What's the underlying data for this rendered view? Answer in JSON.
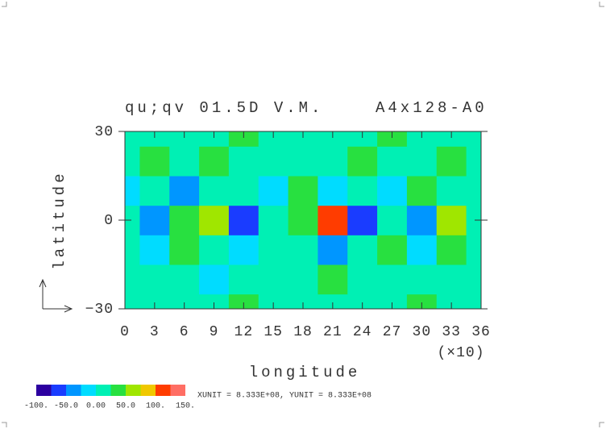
{
  "chart_data": {
    "type": "contour",
    "title": "qu;qv 01.5D V.M.",
    "subtitle": "A4x128-A0",
    "x_label": "longitude",
    "x_unit": "(×10)",
    "y_label": "latitude",
    "unit_note": "XUNIT = 8.333E+08, YUNIT = 8.333E+08",
    "x": [
      0,
      3,
      6,
      9,
      12,
      15,
      18,
      21,
      24,
      27,
      30,
      33,
      36
    ],
    "y": [
      -30,
      -20,
      -10,
      0,
      10,
      20,
      30
    ],
    "z": [
      [
        10,
        20,
        5,
        15,
        30,
        10,
        0,
        20,
        15,
        5,
        25,
        10,
        15
      ],
      [
        5,
        0,
        15,
        -10,
        10,
        20,
        5,
        30,
        10,
        15,
        0,
        20,
        10
      ],
      [
        15,
        -20,
        40,
        10,
        -15,
        20,
        10,
        -30,
        5,
        25,
        -10,
        30,
        5
      ],
      [
        20,
        -40,
        30,
        60,
        -60,
        10,
        40,
        110,
        -70,
        20,
        -40,
        50,
        10
      ],
      [
        -10,
        20,
        -30,
        10,
        20,
        -20,
        30,
        -10,
        20,
        -20,
        40,
        10,
        20
      ],
      [
        10,
        25,
        5,
        30,
        10,
        15,
        20,
        5,
        35,
        10,
        15,
        25,
        5
      ],
      [
        15,
        10,
        20,
        5,
        25,
        10,
        15,
        20,
        10,
        30,
        5,
        15,
        20
      ]
    ],
    "xlim": [
      0,
      36
    ],
    "ylim": [
      -30,
      30
    ],
    "xticks": [
      0,
      3,
      6,
      9,
      12,
      15,
      18,
      21,
      24,
      27,
      30,
      33,
      36
    ],
    "yticks": [
      -30,
      0,
      30
    ],
    "levels": [
      -100,
      -75,
      -50,
      -25,
      0,
      25,
      50,
      75,
      100,
      125,
      150
    ],
    "level_ticks": [
      {
        "value": -100,
        "label": "-100."
      },
      {
        "value": -50,
        "label": "-50.0"
      },
      {
        "value": 0,
        "label": "0.00"
      },
      {
        "value": 50,
        "label": "50.0"
      },
      {
        "value": 100,
        "label": "100."
      },
      {
        "value": 150,
        "label": "150."
      }
    ],
    "colors": [
      "#2c00a0",
      "#1a3cff",
      "#0096ff",
      "#00dcff",
      "#00f0b4",
      "#28e040",
      "#a0e600",
      "#f0c800",
      "#ff3c00",
      "#ff6e64"
    ]
  }
}
